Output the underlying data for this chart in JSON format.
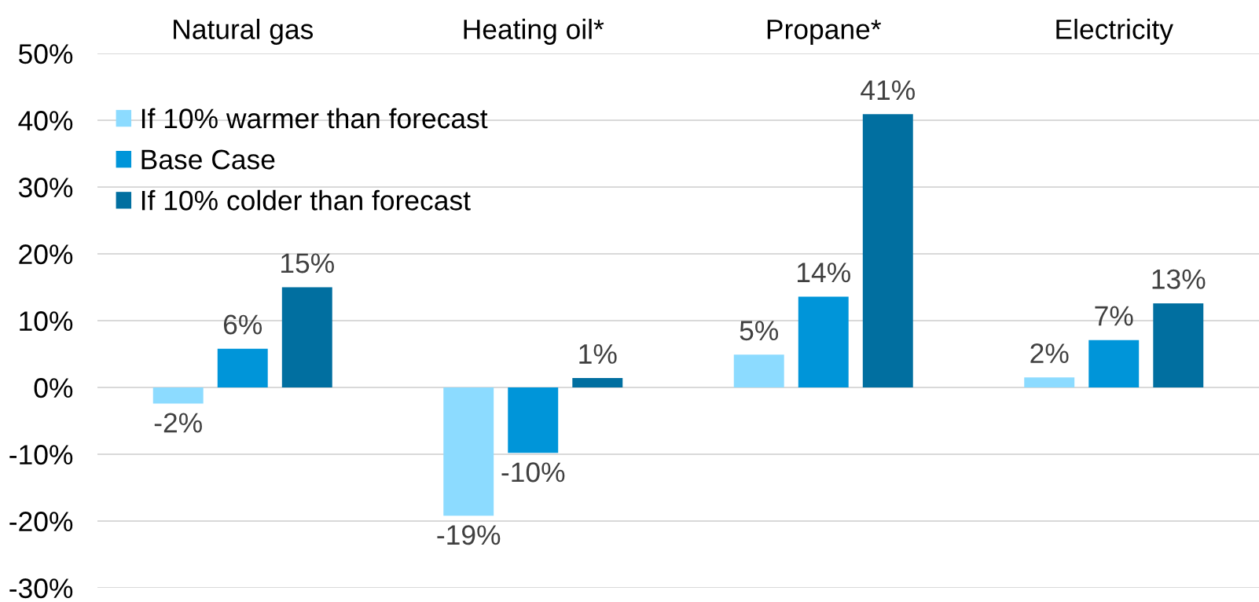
{
  "chart_data": {
    "type": "bar",
    "categories": [
      "Natural gas",
      "Heating oil*",
      "Propane*",
      "Electricity"
    ],
    "series": [
      {
        "name": "If 10% warmer than forecast",
        "color": "#8cdbff",
        "values": [
          -2.4,
          -19.2,
          4.9,
          1.5
        ],
        "value_labels": [
          "-2%",
          "-19%",
          "5%",
          "2%"
        ]
      },
      {
        "name": "Base Case",
        "color": "#0095d9",
        "values": [
          5.8,
          -9.8,
          13.6,
          7.1
        ],
        "value_labels": [
          "6%",
          "-10%",
          "14%",
          "7%"
        ]
      },
      {
        "name": "If 10% colder than forecast",
        "color": "#016fa0",
        "values": [
          15.0,
          1.4,
          40.9,
          12.6
        ],
        "value_labels": [
          "15%",
          "1%",
          "41%",
          "13%"
        ]
      }
    ],
    "ylim": [
      -30,
      50
    ],
    "yticks": [
      {
        "value": -30,
        "label": "-30%"
      },
      {
        "value": -20,
        "label": "-20%"
      },
      {
        "value": -10,
        "label": "-10%"
      },
      {
        "value": 0,
        "label": "0%"
      },
      {
        "value": 10,
        "label": "10%"
      },
      {
        "value": 20,
        "label": "20%"
      },
      {
        "value": 30,
        "label": "30%"
      },
      {
        "value": 40,
        "label": "40%"
      },
      {
        "value": 50,
        "label": "50%"
      }
    ],
    "grid": "y",
    "legend": "top left"
  }
}
